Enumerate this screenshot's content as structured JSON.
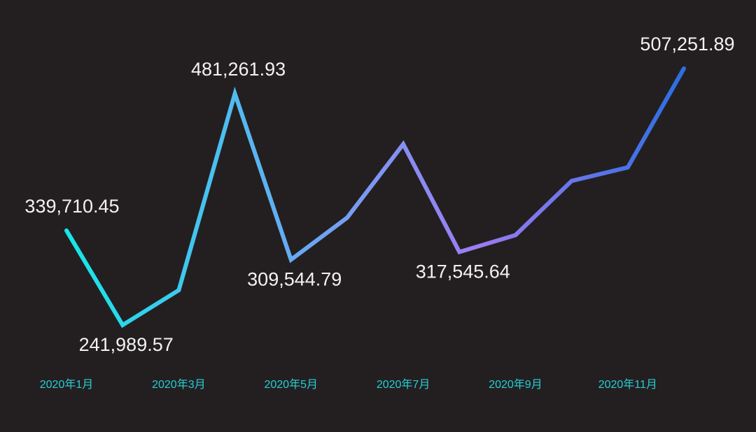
{
  "chart_data": {
    "type": "line",
    "categories": [
      "2020年1月",
      null,
      "2020年3月",
      null,
      "2020年5月",
      null,
      "2020年7月",
      null,
      "2020年9月",
      null,
      "2020年11月",
      null
    ],
    "values": [
      339710.45,
      241989.57,
      278000,
      481261.93,
      309544.79,
      353000,
      429000,
      317545.64,
      335000,
      391000,
      405000,
      507251.89
    ],
    "value_labels": [
      "339,710.45",
      "241,989.57",
      null,
      "481,261.93",
      "309,544.79",
      null,
      null,
      "317,545.64",
      null,
      null,
      null,
      "507,251.89"
    ],
    "colors": [
      "#16e6e8",
      "#5fb0f2",
      "#9c7cf2",
      "#2a6fe2"
    ]
  }
}
